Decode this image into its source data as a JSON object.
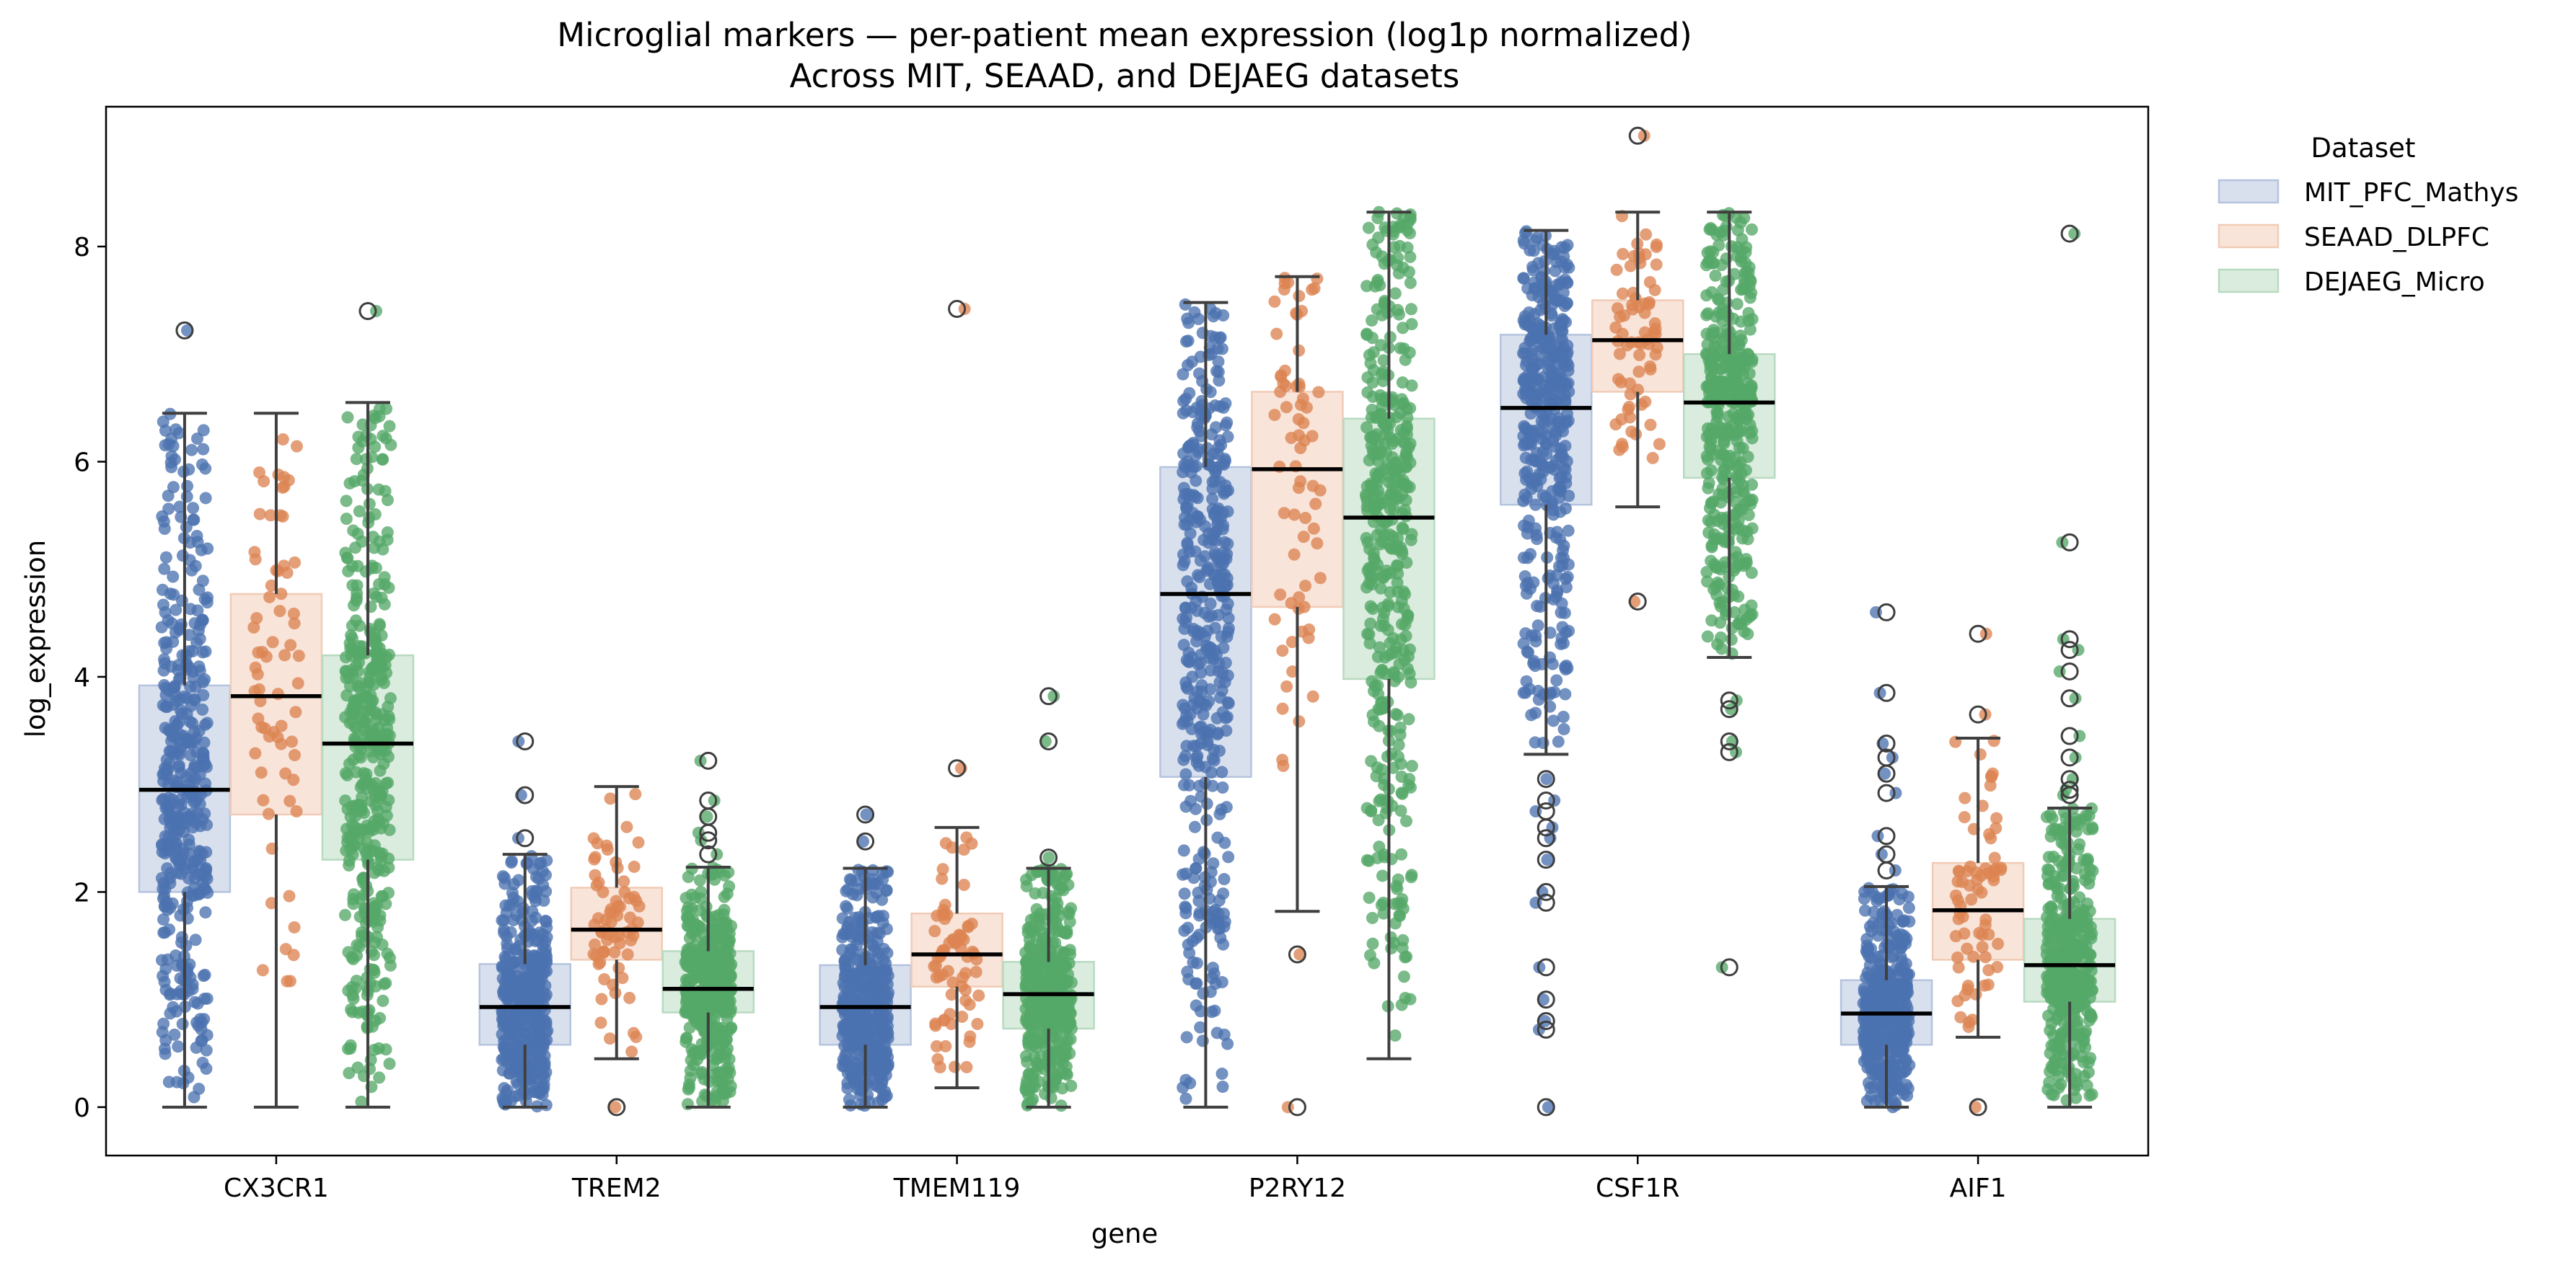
{
  "chart_data": {
    "type": "box",
    "title": "Microglial markers — per-patient mean expression (log1p normalized)",
    "subtitle": "Across MIT, SEAAD, and DEJAEG datasets",
    "xlabel": "gene",
    "ylabel": "log_expression",
    "ylim": [
      -0.45,
      9.3
    ],
    "yticks": [
      0,
      2,
      4,
      6,
      8
    ],
    "categories": [
      "CX3CR1",
      "TREM2",
      "TMEM119",
      "P2RY12",
      "CSF1R",
      "AIF1"
    ],
    "legend": {
      "title": "Dataset",
      "placement": "outside-top-right"
    },
    "grid": false,
    "series": [
      {
        "name": "MIT_PFC_Mathys",
        "color": "#4c72b0",
        "n_points": 420,
        "boxes": [
          {
            "q1": 2.0,
            "median": 2.95,
            "q3": 3.92,
            "whisker_low": 0.0,
            "whisker_high": 6.45,
            "outliers": [
              7.22
            ]
          },
          {
            "q1": 0.58,
            "median": 0.93,
            "q3": 1.33,
            "whisker_low": 0.0,
            "whisker_high": 2.35,
            "outliers": [
              2.5,
              2.9,
              3.4
            ]
          },
          {
            "q1": 0.58,
            "median": 0.93,
            "q3": 1.32,
            "whisker_low": 0.0,
            "whisker_high": 2.22,
            "outliers": [
              2.47,
              2.72
            ]
          },
          {
            "q1": 3.07,
            "median": 4.77,
            "q3": 5.95,
            "whisker_low": 0.0,
            "whisker_high": 7.48,
            "outliers": []
          },
          {
            "q1": 5.6,
            "median": 6.5,
            "q3": 7.18,
            "whisker_low": 3.28,
            "whisker_high": 8.15,
            "outliers": [
              3.05,
              2.85,
              2.75,
              2.6,
              2.5,
              2.3,
              2.0,
              1.9,
              1.3,
              1.0,
              0.8,
              0.72,
              0.0
            ]
          },
          {
            "q1": 0.58,
            "median": 0.87,
            "q3": 1.18,
            "whisker_low": 0.0,
            "whisker_high": 2.05,
            "outliers": [
              2.2,
              2.35,
              2.52,
              2.92,
              3.1,
              3.25,
              3.38,
              3.85,
              4.6
            ]
          }
        ]
      },
      {
        "name": "SEAAD_DLPFC",
        "color": "#dd8452",
        "n_points": 70,
        "boxes": [
          {
            "q1": 2.72,
            "median": 3.82,
            "q3": 4.77,
            "whisker_low": 0.0,
            "whisker_high": 6.45,
            "outliers": []
          },
          {
            "q1": 1.37,
            "median": 1.65,
            "q3": 2.04,
            "whisker_low": 0.45,
            "whisker_high": 2.98,
            "outliers": [
              0.0
            ]
          },
          {
            "q1": 1.12,
            "median": 1.42,
            "q3": 1.8,
            "whisker_low": 0.18,
            "whisker_high": 2.6,
            "outliers": [
              3.15,
              7.42
            ]
          },
          {
            "q1": 4.65,
            "median": 5.93,
            "q3": 6.65,
            "whisker_low": 1.82,
            "whisker_high": 7.72,
            "outliers": [
              1.42,
              0.0
            ]
          },
          {
            "q1": 6.65,
            "median": 7.13,
            "q3": 7.5,
            "whisker_low": 5.58,
            "whisker_high": 8.32,
            "outliers": [
              9.03,
              4.7
            ]
          },
          {
            "q1": 1.37,
            "median": 1.83,
            "q3": 2.27,
            "whisker_low": 0.65,
            "whisker_high": 3.43,
            "outliers": [
              3.65,
              4.4,
              0.0
            ]
          }
        ]
      },
      {
        "name": "DEJAEG_Micro",
        "color": "#55a868",
        "n_points": 420,
        "boxes": [
          {
            "q1": 2.3,
            "median": 3.38,
            "q3": 4.2,
            "whisker_low": 0.0,
            "whisker_high": 6.55,
            "outliers": [
              7.4
            ]
          },
          {
            "q1": 0.88,
            "median": 1.1,
            "q3": 1.45,
            "whisker_low": 0.0,
            "whisker_high": 2.23,
            "outliers": [
              2.35,
              2.48,
              2.55,
              2.7,
              2.85,
              3.22
            ]
          },
          {
            "q1": 0.73,
            "median": 1.05,
            "q3": 1.35,
            "whisker_low": 0.0,
            "whisker_high": 2.22,
            "outliers": [
              2.32,
              3.4,
              3.82
            ]
          },
          {
            "q1": 3.98,
            "median": 5.48,
            "q3": 6.4,
            "whisker_low": 0.45,
            "whisker_high": 8.32,
            "outliers": []
          },
          {
            "q1": 5.85,
            "median": 6.55,
            "q3": 7.0,
            "whisker_low": 4.18,
            "whisker_high": 8.32,
            "outliers": [
              3.78,
              3.7,
              3.4,
              3.3,
              1.3
            ]
          },
          {
            "q1": 0.98,
            "median": 1.32,
            "q3": 1.75,
            "whisker_low": 0.0,
            "whisker_high": 2.78,
            "outliers": [
              2.9,
              2.95,
              3.05,
              3.25,
              3.45,
              3.8,
              4.05,
              4.25,
              4.35,
              5.25,
              8.12
            ]
          }
        ]
      }
    ]
  }
}
